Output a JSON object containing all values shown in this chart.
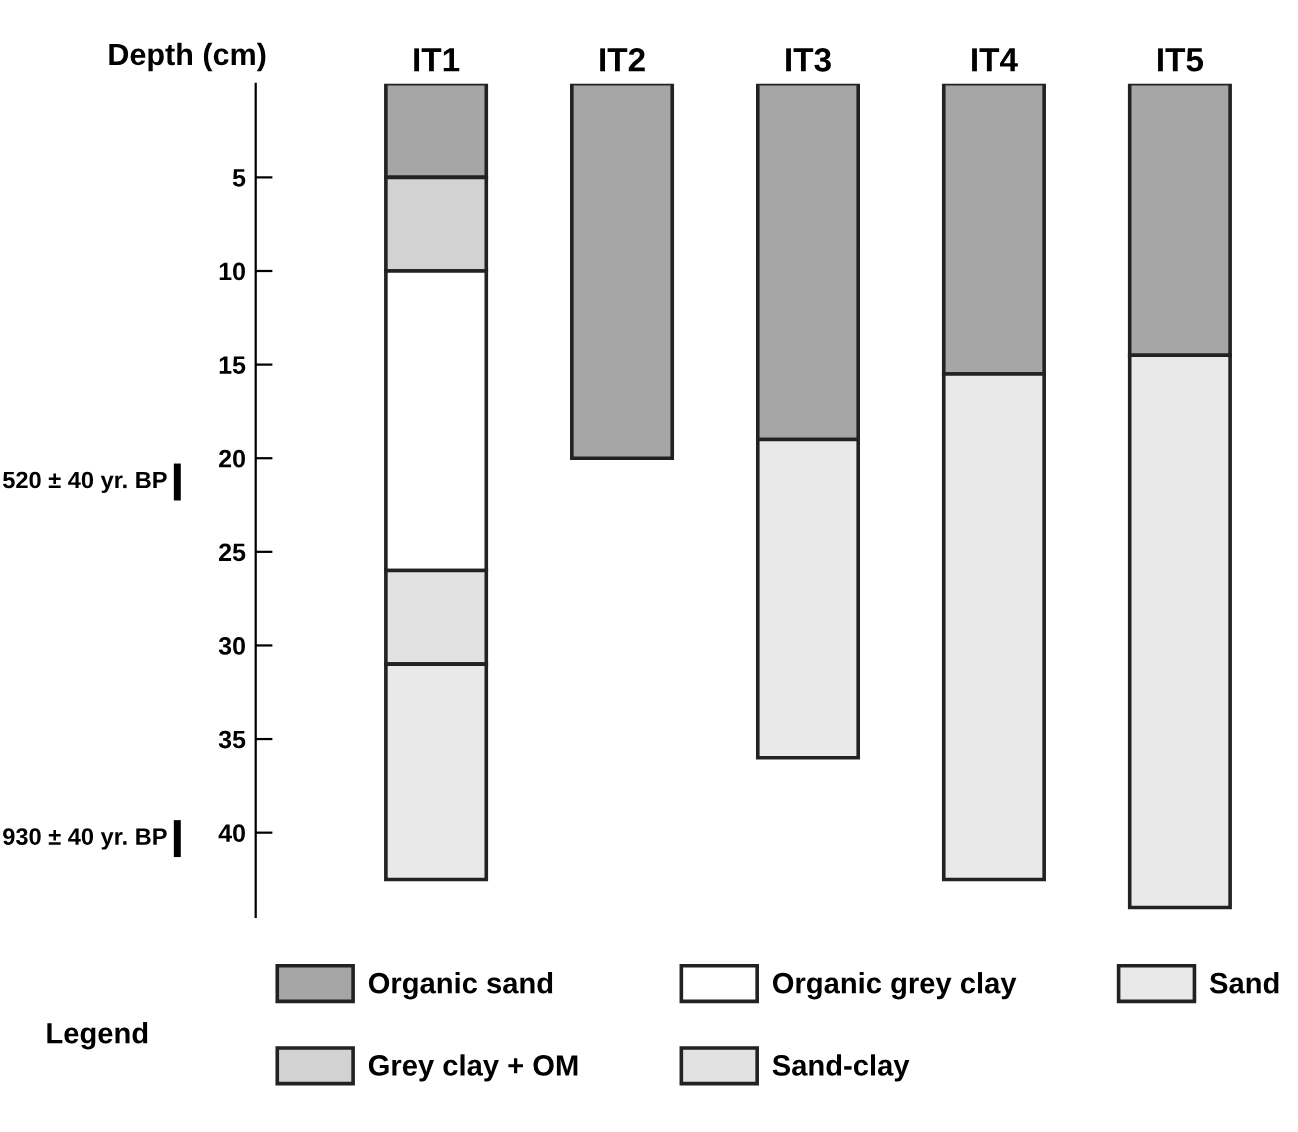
{
  "chart_data": {
    "type": "bar",
    "stacked": true,
    "ylabel": "Depth (cm)",
    "legend_title": "Legend",
    "legend": "bottom",
    "grid": false,
    "categories": [
      "IT1",
      "IT2",
      "IT3",
      "IT4",
      "IT5"
    ],
    "series": [
      {
        "name": "Organic sand",
        "color": "#a6a6a6",
        "values": [
          5,
          20,
          19,
          15.5,
          14.5
        ]
      },
      {
        "name": "Grey clay + OM",
        "color": "#d2d2d2",
        "values": [
          5,
          0,
          0,
          0,
          0
        ]
      },
      {
        "name": "Organic grey clay",
        "color": "#ffffff",
        "values": [
          16,
          0,
          0,
          0,
          0
        ]
      },
      {
        "name": "Sand-clay",
        "color": "#e2e2e2",
        "values": [
          5,
          0,
          0,
          0,
          0
        ]
      },
      {
        "name": "Sand",
        "color": "#e9e9e9",
        "values": [
          11.5,
          0,
          17,
          27,
          29.5
        ]
      }
    ],
    "ylim": [
      44.5,
      0
    ],
    "yticks": [
      5,
      10,
      15,
      20,
      25,
      30,
      35,
      40
    ],
    "annotations": [
      "520 ± 40 yr. BP",
      "930 ± 40 yr. BP"
    ]
  }
}
